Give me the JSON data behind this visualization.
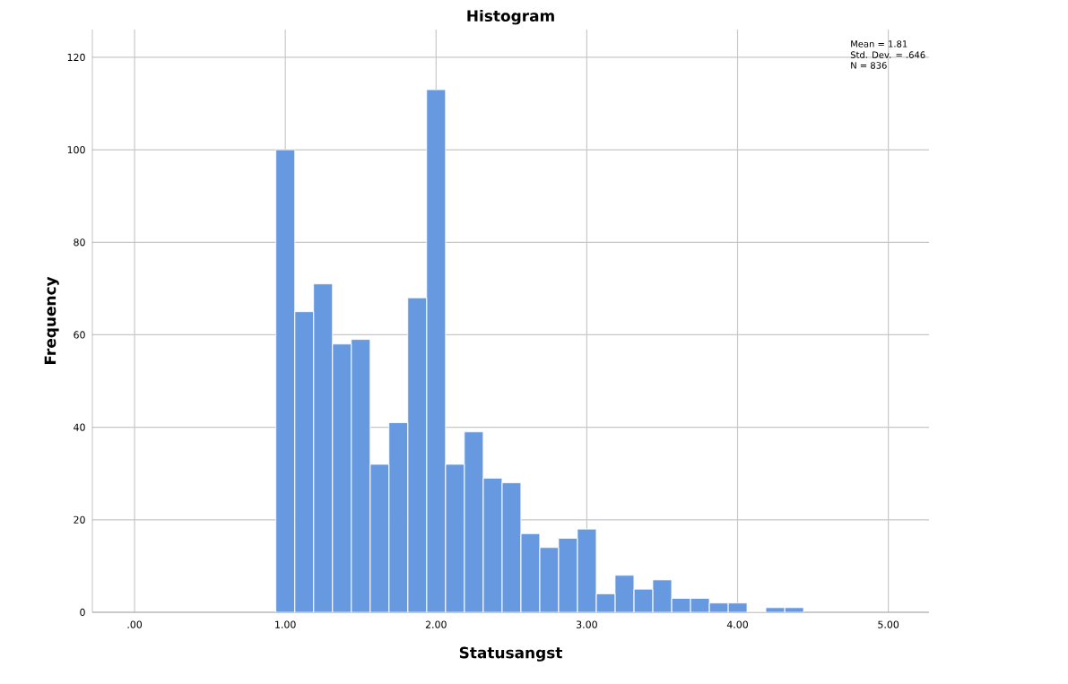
{
  "chart_data": {
    "type": "histogram",
    "title": "Histogram",
    "xlabel": "Statusangst",
    "ylabel": "Frequency",
    "bins": [
      0.9375,
      1.0625,
      1.1875,
      1.3125,
      1.4375,
      1.5625,
      1.6875,
      1.8125,
      1.9375,
      2.0625,
      2.1875,
      2.3125,
      2.4375,
      2.5625,
      2.6875,
      2.8125,
      2.9375,
      3.0625,
      3.1875,
      3.3125,
      3.4375,
      3.5625,
      3.6875,
      3.8125,
      3.9375,
      4.0625,
      4.1875,
      4.3125,
      4.4375
    ],
    "values": [
      100,
      65,
      71,
      58,
      59,
      32,
      41,
      68,
      113,
      32,
      39,
      29,
      28,
      17,
      14,
      16,
      18,
      4,
      8,
      5,
      7,
      3,
      3,
      2,
      2,
      0,
      1,
      1
    ],
    "color": "#6699e0",
    "xlim": [
      -0.28,
      5.27
    ],
    "ylim": [
      0,
      126
    ],
    "xticks": [
      {
        "value": 0,
        "label": ".00"
      },
      {
        "value": 1,
        "label": "1.00"
      },
      {
        "value": 2,
        "label": "2.00"
      },
      {
        "value": 3,
        "label": "3.00"
      },
      {
        "value": 4,
        "label": "4.00"
      },
      {
        "value": 5,
        "label": "5.00"
      }
    ],
    "yticks": [
      0,
      20,
      40,
      60,
      80,
      100,
      120
    ],
    "grid": true,
    "annotations": [
      "Mean = 1.81",
      "Std. Dev. = .646",
      "N = 836"
    ]
  }
}
